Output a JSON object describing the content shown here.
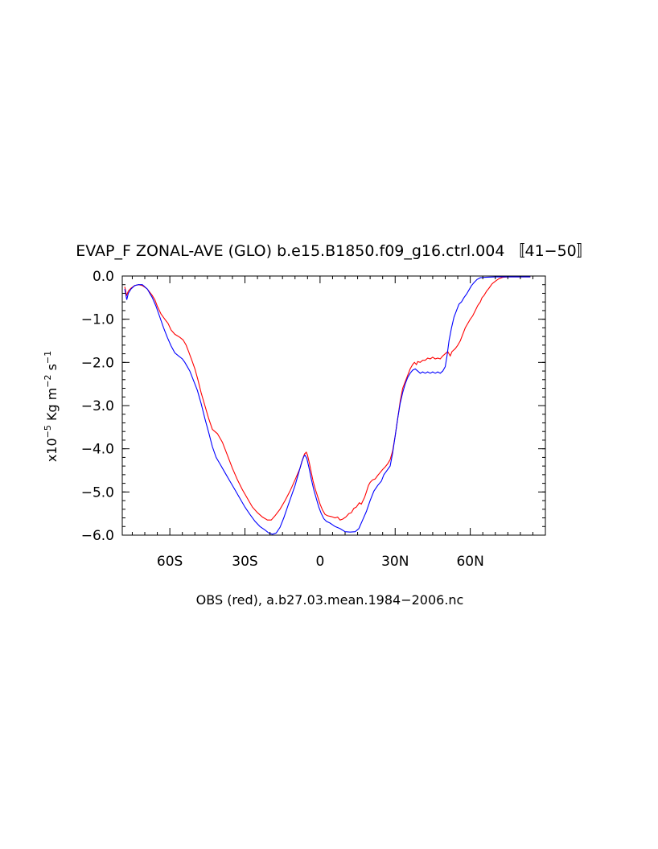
{
  "chart_data": {
    "type": "line",
    "title": "EVAP_F ZONAL-AVE (GLO) b.e15.B1850.f09_g16.ctrl.004 [41-50]",
    "xlabel": "OBS (red), a.b27.03.mean.1984-2006.nc",
    "ylabel": {
      "prefix": "x10",
      "exp": "-5",
      "unit1": " Kg m",
      "exp2": "-2",
      "unit2": " s",
      "exp3": "-1"
    },
    "xlim": [
      -79,
      90
    ],
    "ylim": [
      -6.0,
      0.0
    ],
    "x_ticks": [
      {
        "value": -60,
        "label": "60S"
      },
      {
        "value": -30,
        "label": "30S"
      },
      {
        "value": 0,
        "label": "0"
      },
      {
        "value": 30,
        "label": "30N"
      },
      {
        "value": 60,
        "label": "60N"
      }
    ],
    "y_ticks": [
      {
        "value": 0.0,
        "label": "0.0"
      },
      {
        "value": -1.0,
        "label": "-1.0"
      },
      {
        "value": -2.0,
        "label": "-2.0"
      },
      {
        "value": -3.0,
        "label": "-3.0"
      },
      {
        "value": -4.0,
        "label": "-4.0"
      },
      {
        "value": -5.0,
        "label": "-5.0"
      },
      {
        "value": -6.0,
        "label": "-6.0"
      }
    ],
    "grid": false,
    "series": [
      {
        "color": "#ff0000",
        "points": [
          [
            -78,
            -0.25
          ],
          [
            -77.3,
            -0.45
          ],
          [
            -76.6,
            -0.35
          ],
          [
            -75.5,
            -0.28
          ],
          [
            -74,
            -0.22
          ],
          [
            -72.5,
            -0.2
          ],
          [
            -71,
            -0.22
          ],
          [
            -69,
            -0.3
          ],
          [
            -67,
            -0.45
          ],
          [
            -66,
            -0.55
          ],
          [
            -65,
            -0.7
          ],
          [
            -63.5,
            -0.88
          ],
          [
            -62,
            -1.0
          ],
          [
            -60.7,
            -1.1
          ],
          [
            -59.5,
            -1.25
          ],
          [
            -58,
            -1.35
          ],
          [
            -56,
            -1.42
          ],
          [
            -54.7,
            -1.48
          ],
          [
            -53.5,
            -1.6
          ],
          [
            -52.5,
            -1.75
          ],
          [
            -51.2,
            -1.95
          ],
          [
            -50,
            -2.15
          ],
          [
            -48.8,
            -2.4
          ],
          [
            -47.5,
            -2.7
          ],
          [
            -46,
            -3.0
          ],
          [
            -44.5,
            -3.3
          ],
          [
            -43,
            -3.55
          ],
          [
            -41,
            -3.65
          ],
          [
            -39,
            -3.85
          ],
          [
            -37,
            -4.15
          ],
          [
            -35,
            -4.45
          ],
          [
            -33,
            -4.72
          ],
          [
            -31,
            -4.95
          ],
          [
            -29,
            -5.15
          ],
          [
            -27,
            -5.35
          ],
          [
            -25,
            -5.48
          ],
          [
            -23,
            -5.58
          ],
          [
            -21,
            -5.65
          ],
          [
            -19.5,
            -5.65
          ],
          [
            -18,
            -5.55
          ],
          [
            -16,
            -5.4
          ],
          [
            -14,
            -5.2
          ],
          [
            -12,
            -4.98
          ],
          [
            -10,
            -4.72
          ],
          [
            -8,
            -4.45
          ],
          [
            -7,
            -4.25
          ],
          [
            -6.2,
            -4.12
          ],
          [
            -5.5,
            -4.08
          ],
          [
            -5,
            -4.15
          ],
          [
            -4.2,
            -4.35
          ],
          [
            -3.5,
            -4.55
          ],
          [
            -2.8,
            -4.75
          ],
          [
            -2,
            -4.92
          ],
          [
            -1,
            -5.1
          ],
          [
            0,
            -5.28
          ],
          [
            1,
            -5.42
          ],
          [
            2,
            -5.52
          ],
          [
            3,
            -5.55
          ],
          [
            4.5,
            -5.57
          ],
          [
            6,
            -5.6
          ],
          [
            7,
            -5.58
          ],
          [
            8,
            -5.65
          ],
          [
            9,
            -5.63
          ],
          [
            10.3,
            -5.58
          ],
          [
            11.5,
            -5.5
          ],
          [
            12.5,
            -5.48
          ],
          [
            13.5,
            -5.38
          ],
          [
            14.5,
            -5.35
          ],
          [
            15.7,
            -5.25
          ],
          [
            16.5,
            -5.28
          ],
          [
            17.8,
            -5.12
          ],
          [
            18.5,
            -5.0
          ],
          [
            19.3,
            -4.85
          ],
          [
            20,
            -4.78
          ],
          [
            21,
            -4.72
          ],
          [
            22,
            -4.7
          ],
          [
            23,
            -4.62
          ],
          [
            24,
            -4.55
          ],
          [
            25,
            -4.48
          ],
          [
            26,
            -4.42
          ],
          [
            27,
            -4.35
          ],
          [
            28,
            -4.25
          ],
          [
            29,
            -4.05
          ],
          [
            30,
            -3.7
          ],
          [
            31,
            -3.3
          ],
          [
            32,
            -2.9
          ],
          [
            33,
            -2.6
          ],
          [
            34,
            -2.45
          ],
          [
            35,
            -2.3
          ],
          [
            36,
            -2.15
          ],
          [
            37,
            -2.05
          ],
          [
            37.7,
            -2.0
          ],
          [
            38.5,
            -2.05
          ],
          [
            39,
            -1.98
          ],
          [
            40,
            -2.0
          ],
          [
            41,
            -1.95
          ],
          [
            42,
            -1.95
          ],
          [
            43,
            -1.9
          ],
          [
            44,
            -1.92
          ],
          [
            45,
            -1.88
          ],
          [
            46,
            -1.92
          ],
          [
            47,
            -1.9
          ],
          [
            48,
            -1.92
          ],
          [
            49,
            -1.85
          ],
          [
            50,
            -1.8
          ],
          [
            51,
            -1.75
          ],
          [
            52,
            -1.85
          ],
          [
            52.7,
            -1.75
          ],
          [
            54,
            -1.68
          ],
          [
            55,
            -1.6
          ],
          [
            56,
            -1.5
          ],
          [
            57,
            -1.35
          ],
          [
            58,
            -1.2
          ],
          [
            59,
            -1.1
          ],
          [
            60,
            -1.0
          ],
          [
            61,
            -0.92
          ],
          [
            62,
            -0.8
          ],
          [
            63,
            -0.68
          ],
          [
            64,
            -0.6
          ],
          [
            64.7,
            -0.5
          ],
          [
            65.5,
            -0.45
          ],
          [
            66.5,
            -0.35
          ],
          [
            67.5,
            -0.28
          ],
          [
            68.7,
            -0.18
          ],
          [
            70,
            -0.12
          ],
          [
            71.5,
            -0.06
          ],
          [
            73,
            -0.03
          ],
          [
            75,
            -0.02
          ],
          [
            80,
            -0.02
          ],
          [
            84,
            -0.02
          ]
        ]
      },
      {
        "color": "#0000ff",
        "points": [
          [
            -78,
            -0.3
          ],
          [
            -77.2,
            -0.55
          ],
          [
            -76.6,
            -0.4
          ],
          [
            -75.5,
            -0.3
          ],
          [
            -74,
            -0.22
          ],
          [
            -72.5,
            -0.2
          ],
          [
            -71,
            -0.2
          ],
          [
            -69,
            -0.3
          ],
          [
            -67,
            -0.5
          ],
          [
            -65.5,
            -0.7
          ],
          [
            -64,
            -0.95
          ],
          [
            -62.5,
            -1.2
          ],
          [
            -61,
            -1.42
          ],
          [
            -59.5,
            -1.62
          ],
          [
            -58,
            -1.78
          ],
          [
            -56.5,
            -1.85
          ],
          [
            -55,
            -1.92
          ],
          [
            -54,
            -2.0
          ],
          [
            -53,
            -2.1
          ],
          [
            -52,
            -2.2
          ],
          [
            -51,
            -2.35
          ],
          [
            -50,
            -2.5
          ],
          [
            -49,
            -2.65
          ],
          [
            -47.5,
            -2.95
          ],
          [
            -46,
            -3.3
          ],
          [
            -44.5,
            -3.62
          ],
          [
            -43,
            -3.95
          ],
          [
            -41.5,
            -4.2
          ],
          [
            -40,
            -4.35
          ],
          [
            -38,
            -4.55
          ],
          [
            -36,
            -4.75
          ],
          [
            -34,
            -4.95
          ],
          [
            -32,
            -5.15
          ],
          [
            -30,
            -5.35
          ],
          [
            -28,
            -5.52
          ],
          [
            -26,
            -5.68
          ],
          [
            -24,
            -5.8
          ],
          [
            -22,
            -5.88
          ],
          [
            -20.5,
            -5.95
          ],
          [
            -19,
            -5.98
          ],
          [
            -17.5,
            -5.95
          ],
          [
            -16,
            -5.82
          ],
          [
            -14.5,
            -5.6
          ],
          [
            -13,
            -5.35
          ],
          [
            -11.5,
            -5.1
          ],
          [
            -10,
            -4.85
          ],
          [
            -8.5,
            -4.55
          ],
          [
            -7.3,
            -4.3
          ],
          [
            -6.5,
            -4.18
          ],
          [
            -6,
            -4.15
          ],
          [
            -5.3,
            -4.22
          ],
          [
            -4.5,
            -4.42
          ],
          [
            -3.5,
            -4.7
          ],
          [
            -2.5,
            -4.95
          ],
          [
            -1.5,
            -5.15
          ],
          [
            -0.5,
            -5.35
          ],
          [
            0.5,
            -5.5
          ],
          [
            1.5,
            -5.62
          ],
          [
            2.5,
            -5.68
          ],
          [
            4,
            -5.72
          ],
          [
            6,
            -5.8
          ],
          [
            8,
            -5.85
          ],
          [
            10,
            -5.92
          ],
          [
            12,
            -5.93
          ],
          [
            14,
            -5.92
          ],
          [
            15.5,
            -5.85
          ],
          [
            17,
            -5.65
          ],
          [
            18.5,
            -5.45
          ],
          [
            20,
            -5.2
          ],
          [
            21.5,
            -4.98
          ],
          [
            23,
            -4.85
          ],
          [
            24.5,
            -4.75
          ],
          [
            25.5,
            -4.6
          ],
          [
            26.5,
            -4.52
          ],
          [
            28,
            -4.4
          ],
          [
            29,
            -4.1
          ],
          [
            30,
            -3.7
          ],
          [
            31,
            -3.3
          ],
          [
            32,
            -2.95
          ],
          [
            33,
            -2.7
          ],
          [
            34,
            -2.5
          ],
          [
            35,
            -2.35
          ],
          [
            36,
            -2.25
          ],
          [
            37,
            -2.18
          ],
          [
            38,
            -2.15
          ],
          [
            39,
            -2.2
          ],
          [
            40,
            -2.25
          ],
          [
            41,
            -2.22
          ],
          [
            42,
            -2.25
          ],
          [
            43,
            -2.22
          ],
          [
            44,
            -2.25
          ],
          [
            45,
            -2.22
          ],
          [
            46,
            -2.25
          ],
          [
            47,
            -2.22
          ],
          [
            48,
            -2.25
          ],
          [
            49,
            -2.2
          ],
          [
            50,
            -2.1
          ],
          [
            50.7,
            -1.85
          ],
          [
            51.5,
            -1.5
          ],
          [
            52.5,
            -1.2
          ],
          [
            53.5,
            -0.95
          ],
          [
            54.5,
            -0.8
          ],
          [
            55.5,
            -0.65
          ],
          [
            56.5,
            -0.6
          ],
          [
            57.5,
            -0.5
          ],
          [
            58.5,
            -0.42
          ],
          [
            59.5,
            -0.32
          ],
          [
            60.5,
            -0.22
          ],
          [
            61.5,
            -0.15
          ],
          [
            62.7,
            -0.08
          ],
          [
            64,
            -0.04
          ],
          [
            66,
            -0.03
          ],
          [
            70,
            -0.02
          ],
          [
            75,
            -0.02
          ],
          [
            84,
            -0.02
          ]
        ]
      }
    ]
  }
}
